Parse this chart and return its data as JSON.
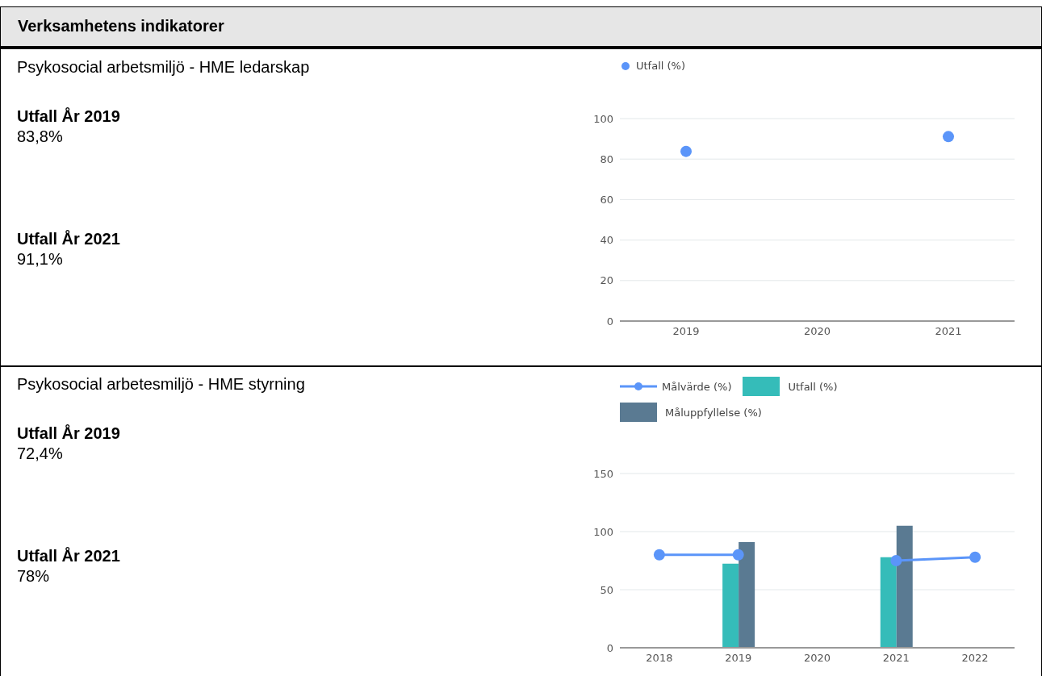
{
  "chart_data": [
    {
      "type": "other",
      "title": "Verksamhetens indikatorer"
    },
    {
      "type": "other",
      "title": "Psykosocial arbetsmiljö - HME ledarskap",
      "annotations": [
        "Utfall År 2019",
        "83,8%",
        "Utfall År 2021",
        "91,1%"
      ]
    },
    {
      "type": "line",
      "categories": [
        "2019",
        "2020",
        "2021"
      ],
      "series": [
        {
          "name": "Utfall (%)",
          "type": "scatter",
          "color": "#5b95f9",
          "values": [
            83.8,
            null,
            91.1
          ]
        }
      ],
      "ylim": [
        0,
        100
      ],
      "yticks": [
        0,
        20,
        40,
        60,
        80,
        100
      ],
      "grid": "y",
      "legend": "top left",
      "marker": "circle"
    },
    {
      "type": "other",
      "title": "Psykosocial arbetesmiljö - HME styrning",
      "annotations": [
        "Utfall År 2019",
        "72,4%",
        "Utfall År 2021",
        "78%"
      ]
    },
    {
      "type": "bar",
      "categories": [
        "2018",
        "2019",
        "2020",
        "2021",
        "2022"
      ],
      "series": [
        {
          "name": "Målvärde (%)",
          "type": "line",
          "color": "#5b95f9",
          "values": [
            80,
            80,
            null,
            75,
            78
          ]
        },
        {
          "name": "Utfall (%)",
          "type": "bar",
          "color": "#35bcb9",
          "values": [
            null,
            72.4,
            null,
            78,
            null
          ]
        },
        {
          "name": "Måluppfyllelse (%)",
          "type": "bar",
          "color": "#5a7a92",
          "values": [
            null,
            91,
            null,
            105,
            null
          ]
        }
      ],
      "ylim": [
        0,
        150
      ],
      "yticks": [
        0,
        50,
        100,
        150
      ],
      "grid": "y",
      "legend": "top left",
      "marker": "circle"
    }
  ]
}
